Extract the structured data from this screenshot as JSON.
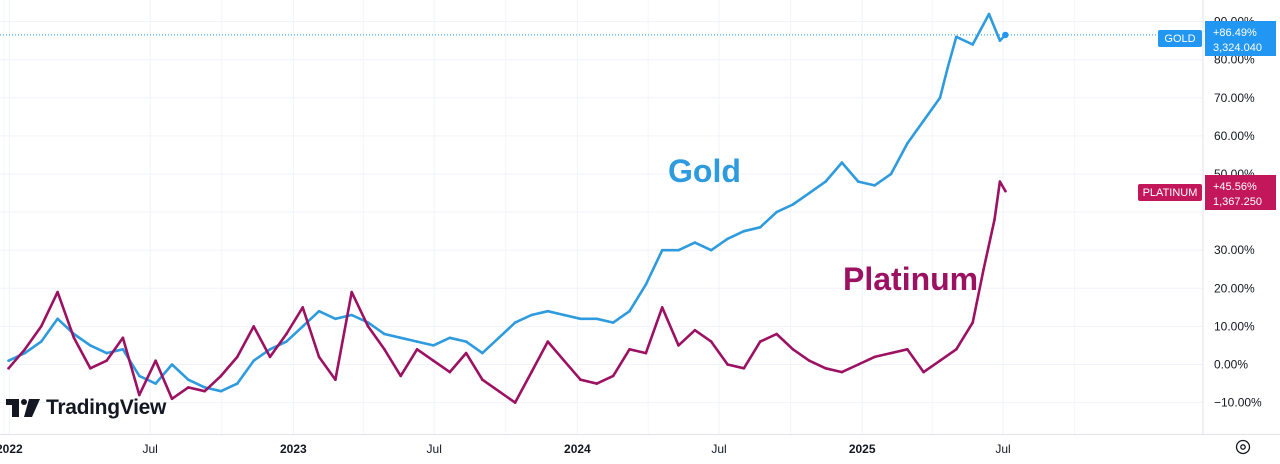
{
  "chart_data": {
    "type": "line",
    "brand": "TradingView",
    "y_unit": "percent change",
    "y_ticks": [
      "90.00%",
      "80.00%",
      "70.00%",
      "60.00%",
      "50.00%",
      "30.00%",
      "20.00%",
      "10.00%",
      "0.00%",
      "−10.00%"
    ],
    "x_ticks": [
      "2022",
      "Jul",
      "2023",
      "Jul",
      "2024",
      "Jul",
      "2025",
      "Jul"
    ],
    "ylim": [
      -15,
      95
    ],
    "xlim": [
      "2021-12-20",
      "2026-03-15"
    ],
    "grid": true,
    "annotations": [
      {
        "text": "Gold",
        "color": "#2e9bde"
      },
      {
        "text": "Platinum",
        "color": "#9c1162"
      }
    ],
    "price_tags": [
      {
        "label": "GOLD",
        "change": "+86.49%",
        "price": "3,324.040",
        "color": "#2196f3"
      },
      {
        "label": "PLATINUM",
        "change": "+45.56%",
        "price": "1,367.250",
        "color": "#c2185b"
      }
    ],
    "series": [
      {
        "name": "GOLD",
        "color": "#2e9bde",
        "x": [
          "2021-12-31",
          "2022-01-21",
          "2022-02-11",
          "2022-03-04",
          "2022-03-25",
          "2022-04-15",
          "2022-05-06",
          "2022-05-27",
          "2022-06-17",
          "2022-07-08",
          "2022-07-29",
          "2022-08-19",
          "2022-09-09",
          "2022-09-30",
          "2022-10-21",
          "2022-11-11",
          "2022-12-02",
          "2022-12-23",
          "2023-01-13",
          "2023-02-03",
          "2023-02-24",
          "2023-03-17",
          "2023-04-07",
          "2023-04-28",
          "2023-05-19",
          "2023-06-09",
          "2023-06-30",
          "2023-07-21",
          "2023-08-11",
          "2023-09-01",
          "2023-09-22",
          "2023-10-13",
          "2023-11-03",
          "2023-11-24",
          "2023-12-15",
          "2024-01-05",
          "2024-01-26",
          "2024-02-16",
          "2024-03-08",
          "2024-03-29",
          "2024-04-19",
          "2024-05-10",
          "2024-05-31",
          "2024-06-21",
          "2024-07-12",
          "2024-08-02",
          "2024-08-23",
          "2024-09-13",
          "2024-10-04",
          "2024-10-25",
          "2024-11-15",
          "2024-12-06",
          "2024-12-27",
          "2025-01-17",
          "2025-02-07",
          "2025-02-28",
          "2025-03-21",
          "2025-04-11",
          "2025-04-21",
          "2025-05-02",
          "2025-05-23",
          "2025-06-13",
          "2025-06-27",
          "2025-07-04"
        ],
        "values": [
          1,
          3,
          6,
          12,
          8,
          5,
          3,
          4,
          -3,
          -5,
          0,
          -4,
          -6,
          -7,
          -5,
          1,
          4,
          6,
          10,
          14,
          12,
          13,
          11,
          8,
          7,
          6,
          5,
          7,
          6,
          3,
          7,
          11,
          13,
          14,
          13,
          12,
          12,
          11,
          14,
          21,
          30,
          30,
          32,
          30,
          33,
          35,
          36,
          40,
          42,
          45,
          48,
          53,
          48,
          47,
          50,
          58,
          64,
          70,
          78,
          86,
          84,
          92,
          85,
          86.5
        ]
      },
      {
        "name": "PLATINUM",
        "color": "#9c1162",
        "x": [
          "2021-12-31",
          "2022-01-21",
          "2022-02-11",
          "2022-03-04",
          "2022-03-25",
          "2022-04-15",
          "2022-05-06",
          "2022-05-27",
          "2022-06-17",
          "2022-07-08",
          "2022-07-29",
          "2022-08-19",
          "2022-09-09",
          "2022-09-30",
          "2022-10-21",
          "2022-11-11",
          "2022-12-02",
          "2022-12-23",
          "2023-01-13",
          "2023-02-03",
          "2023-02-24",
          "2023-03-17",
          "2023-04-07",
          "2023-04-28",
          "2023-05-19",
          "2023-06-09",
          "2023-06-30",
          "2023-07-21",
          "2023-08-11",
          "2023-09-01",
          "2023-09-22",
          "2023-10-13",
          "2023-11-03",
          "2023-11-24",
          "2023-12-15",
          "2024-01-05",
          "2024-01-26",
          "2024-02-16",
          "2024-03-08",
          "2024-03-29",
          "2024-04-19",
          "2024-05-10",
          "2024-05-31",
          "2024-06-21",
          "2024-07-12",
          "2024-08-02",
          "2024-08-23",
          "2024-09-13",
          "2024-10-04",
          "2024-10-25",
          "2024-11-15",
          "2024-12-06",
          "2024-12-27",
          "2025-01-17",
          "2025-02-07",
          "2025-02-28",
          "2025-03-21",
          "2025-04-11",
          "2025-05-02",
          "2025-05-23",
          "2025-06-06",
          "2025-06-20",
          "2025-06-27",
          "2025-07-04"
        ],
        "values": [
          -1,
          4,
          10,
          19,
          7,
          -1,
          1,
          7,
          -8,
          1,
          -9,
          -6,
          -7,
          -3,
          2,
          10,
          2,
          8,
          15,
          2,
          -4,
          19,
          10,
          4,
          -3,
          4,
          1,
          -2,
          3,
          -4,
          -7,
          -10,
          -2,
          6,
          1,
          -4,
          -5,
          -3,
          4,
          3,
          15,
          5,
          9,
          6,
          0,
          -1,
          6,
          8,
          4,
          1,
          -1,
          -2,
          0,
          2,
          3,
          4,
          -2,
          1,
          4,
          11,
          25,
          38,
          48,
          45.5
        ]
      }
    ]
  }
}
